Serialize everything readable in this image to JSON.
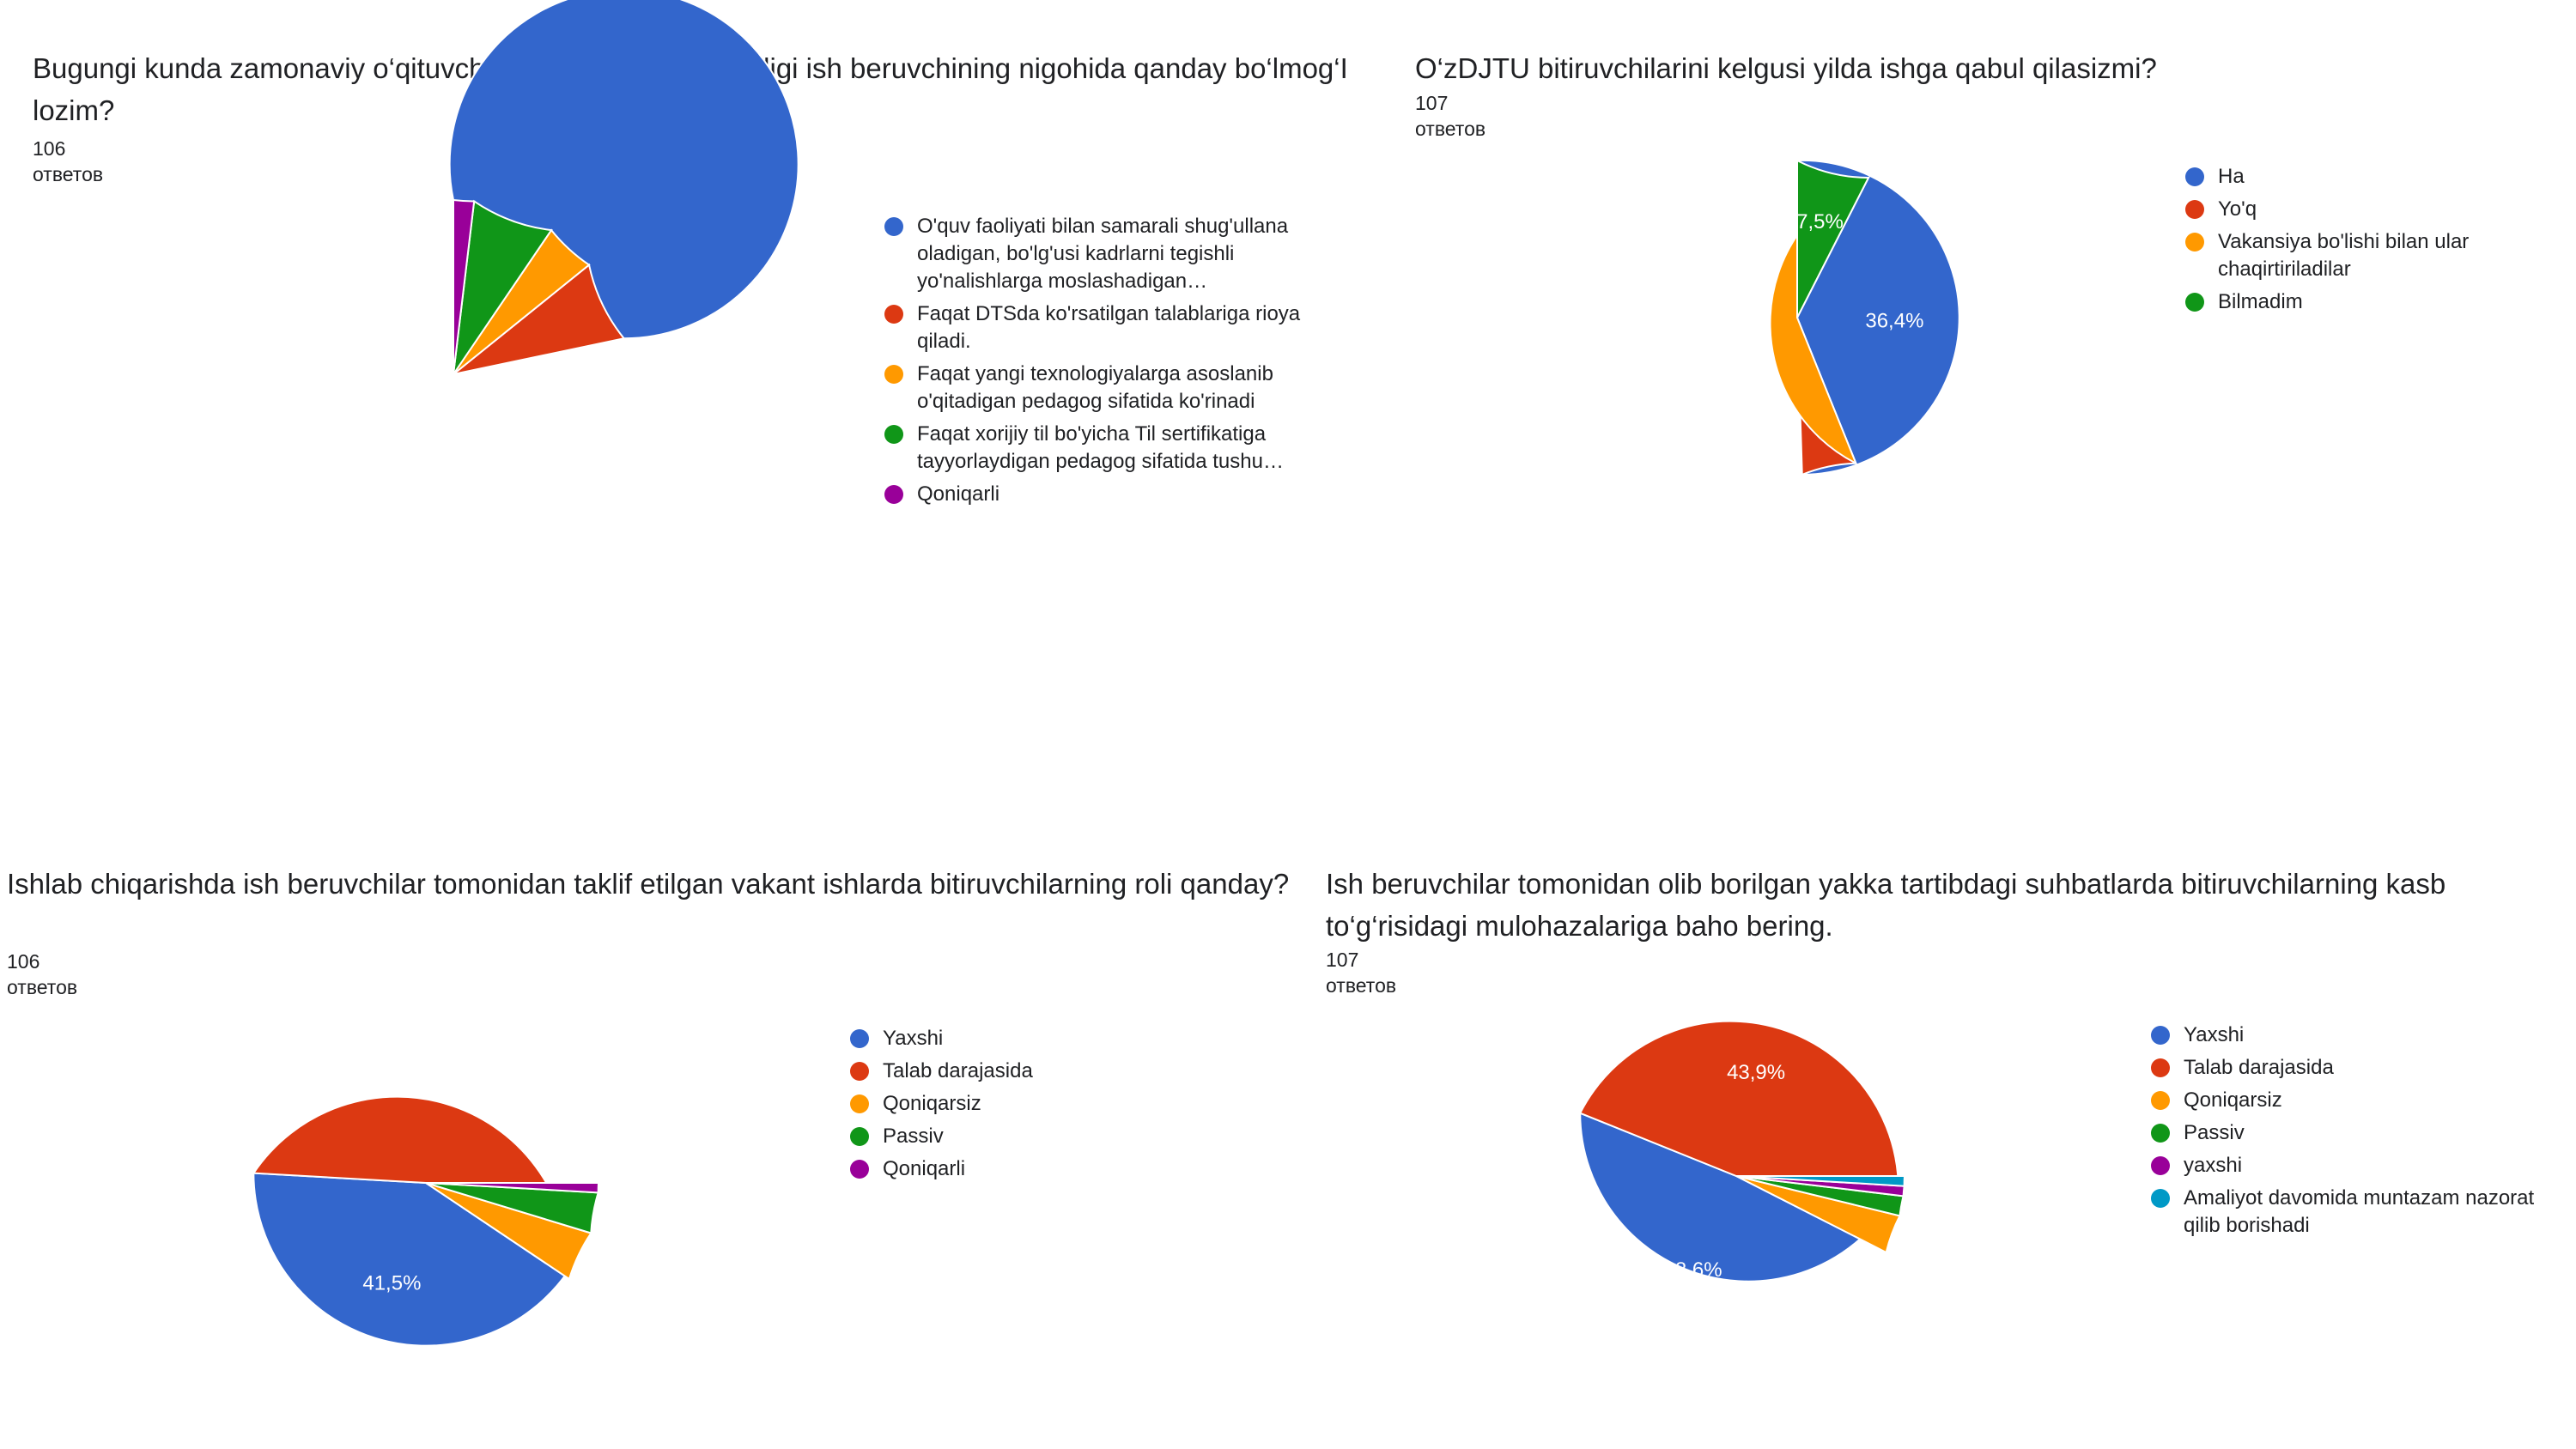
{
  "chart_data": [
    {
      "type": "pie",
      "title": "Bugungi kunda zamonaviy o‘qituvchining kasbiy kompitentligi ish beruvchining nigohida qanday bo‘lmog‘I lozim?",
      "responses": "106 ответов",
      "categories": [
        "O'quv faoliyati bilan samarali shug'ullana oladigan, bo'lg'usi kadrlarni tegishli yo'nalishlarga moslashadigan…",
        "Faqat DTSda ko'rsatilgan talablariga rioya qiladi.",
        "Faqat yangi texnologiyalarga asoslanib o'qitadigan pedagog sifatida ko'rinadi",
        "Faqat xorijiy til bo'yicha Til sertifikatiga tayyorlaydigan pedagog sifatida tushu…",
        "Qoniqarli"
      ],
      "values": [
        78.3,
        7.5,
        4.7,
        7.6,
        1.9
      ],
      "colors": [
        "#3366cc",
        "#dc3912",
        "#ff9900",
        "#109618",
        "#990099"
      ],
      "slice_labels": [
        "78,3%",
        "",
        "",
        "",
        ""
      ],
      "start_angle_deg": 90,
      "direction": "cw"
    },
    {
      "type": "pie",
      "title": "O‘zDJTU bitiruvchilarini kelgusi yilda ishga qabul qilasizmi?",
      "responses": "107 ответов",
      "categories": [
        "Ha",
        "Yo'q",
        "Vakansiya bo'lishi bilan ular chaqirtiriladilar",
        "Bilmadim"
      ],
      "values": [
        50.5,
        5.6,
        36.4,
        7.5
      ],
      "colors": [
        "#3366cc",
        "#dc3912",
        "#ff9900",
        "#109618"
      ],
      "slice_labels": [
        "50,5%",
        "",
        "36,4%",
        "7,5%"
      ],
      "start_angle_deg": 90,
      "direction": "cw"
    },
    {
      "type": "pie",
      "title": "Ishlab chiqarishda ish beruvchilar tomonidan taklif etilgan vakant ishlarda bitiruvchilarning roli qanday?",
      "responses": "106 ответов",
      "categories": [
        "Yaxshi",
        "Talab darajasida",
        "Qoniqarsiz",
        "Passiv",
        "Qoniqarli"
      ],
      "values": [
        49.1,
        41.5,
        4.7,
        3.8,
        0.9
      ],
      "colors": [
        "#3366cc",
        "#dc3912",
        "#ff9900",
        "#109618",
        "#990099"
      ],
      "slice_labels": [
        "49,1%",
        "41,5%",
        "",
        "",
        ""
      ],
      "start_angle_deg": 0,
      "direction": "cw"
    },
    {
      "type": "pie",
      "title": "Ish beruvchilar tomonidan olib borilgan yakka tartibdagi suhbatlarda bitiruvchilarning kasb to‘g‘risidagi mulohazalariga baho bering.",
      "responses": "107 ответов",
      "categories": [
        "Yaxshi",
        "Talab darajasida",
        "Qoniqarsiz",
        "Passiv",
        "yaxshi",
        "Amaliyot davomida muntazam nazorat qilib borishadi"
      ],
      "values": [
        43.9,
        48.6,
        3.7,
        1.9,
        0.95,
        0.95
      ],
      "colors": [
        "#3366cc",
        "#dc3912",
        "#ff9900",
        "#109618",
        "#990099",
        "#0099c6"
      ],
      "slice_labels": [
        "43,9%",
        "48,6%",
        "",
        "",
        "",
        ""
      ],
      "start_angle_deg": 0,
      "direction": "cw"
    }
  ]
}
